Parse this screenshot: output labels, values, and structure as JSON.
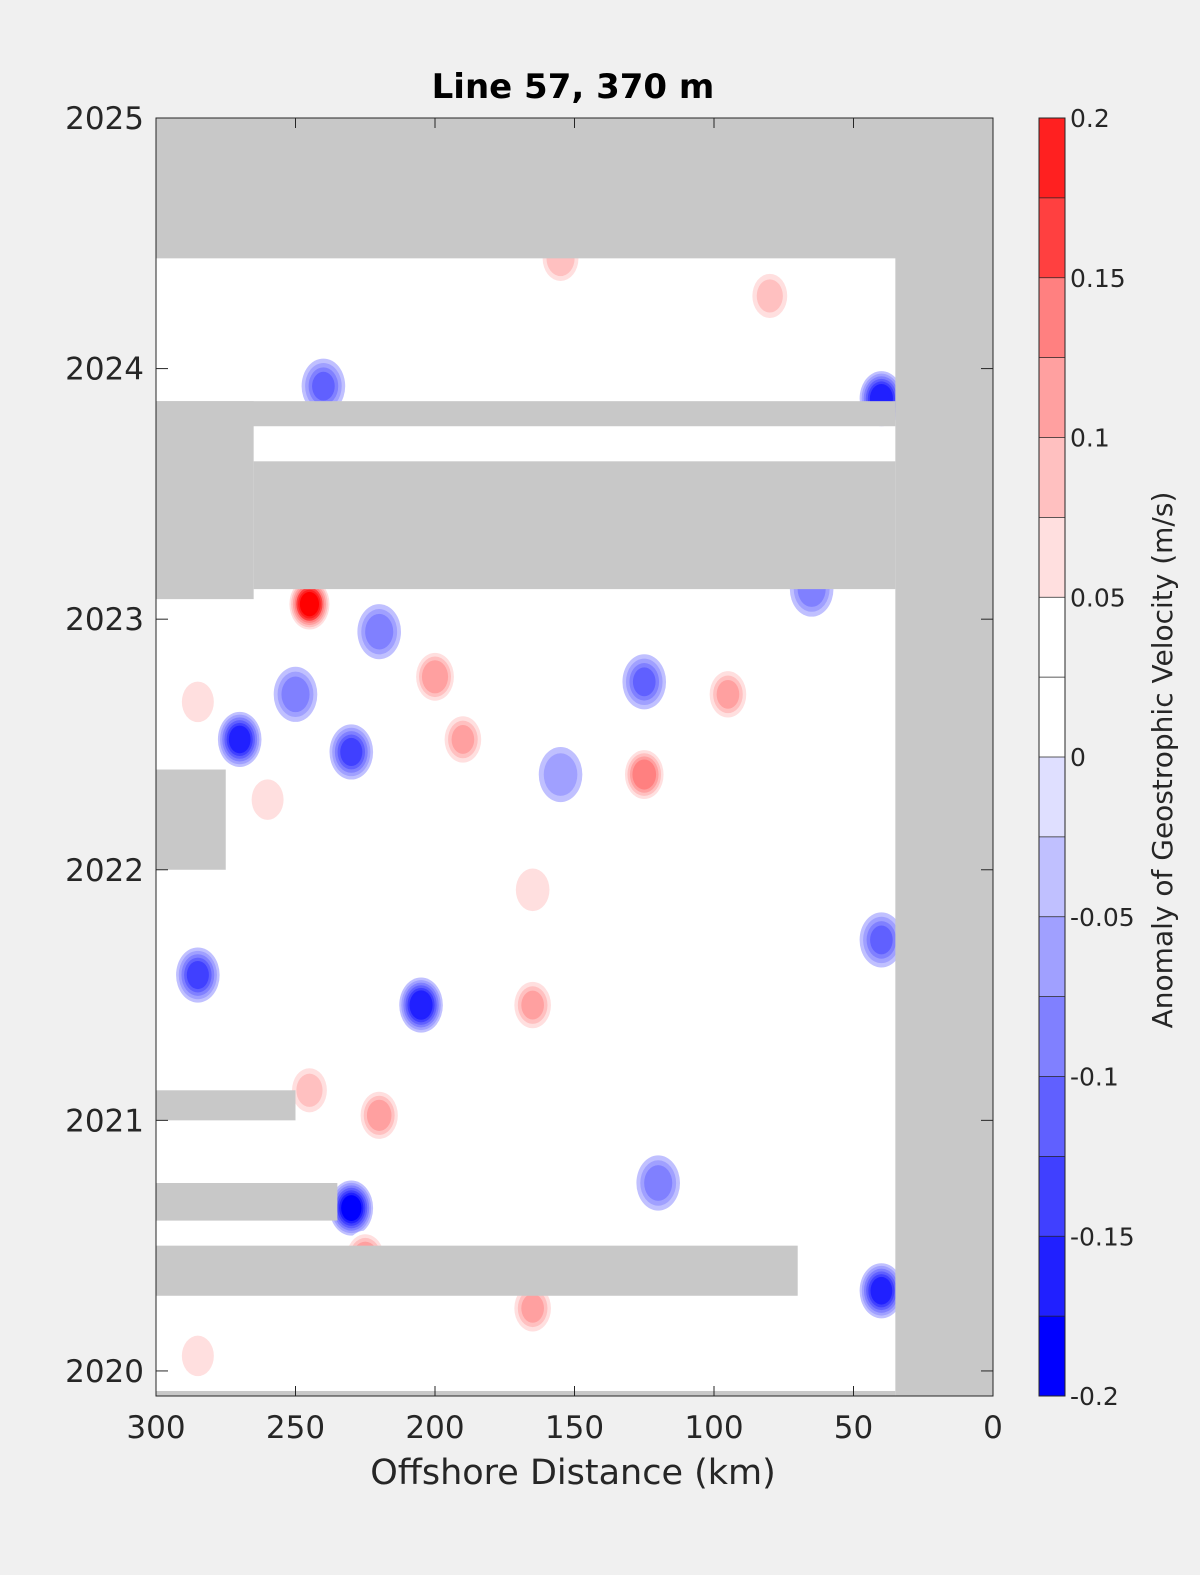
{
  "chart_data": {
    "type": "heatmap",
    "title": "Line 57, 370 m",
    "xlabel": "Offshore Distance (km)",
    "ylabel": "",
    "x_reversed": true,
    "xlim": [
      300,
      0
    ],
    "ylim": [
      2019.9,
      2025
    ],
    "xticks": [
      "300",
      "250",
      "200",
      "150",
      "100",
      "50",
      "0"
    ],
    "yticks": [
      "2020",
      "2021",
      "2022",
      "2023",
      "2024",
      "2025"
    ],
    "colorbar": {
      "label": "Anomaly of Geostrophic Velocity (m/s)",
      "ticks": [
        "0.2",
        "0.15",
        "0.1",
        "0.05",
        "0",
        "-0.05",
        "-0.1",
        "-0.15",
        "-0.2"
      ],
      "levels": [
        -0.2,
        -0.175,
        -0.15,
        -0.125,
        -0.1,
        -0.075,
        -0.05,
        -0.025,
        0,
        0.025,
        0.05,
        0.075,
        0.1,
        0.125,
        0.15,
        0.175,
        0.2
      ],
      "colors": [
        "#0000ff",
        "#2020ff",
        "#4040ff",
        "#6060ff",
        "#8080ff",
        "#a0a0ff",
        "#c0c0ff",
        "#dfdfff",
        "#ffffff",
        "#ffffff",
        "#ffdfdf",
        "#ffc0c0",
        "#ffa0a0",
        "#ff8080",
        "#ff4040",
        "#ff2020",
        "#ff0000"
      ]
    },
    "no_data_color": "#c8c8c8",
    "no_data_regions": [
      {
        "x": [
          300,
          0
        ],
        "y": [
          2024.44,
          2025
        ]
      },
      {
        "x": [
          35,
          0
        ],
        "y": [
          2019.9,
          2025
        ]
      },
      {
        "x": [
          300,
          35
        ],
        "y": [
          2023.87,
          2023.77
        ]
      },
      {
        "x": [
          265,
          35
        ],
        "y": [
          2023.63,
          2023.12
        ]
      },
      {
        "x": [
          300,
          265
        ],
        "y": [
          2023.87,
          2023.08
        ]
      },
      {
        "x": [
          300,
          275
        ],
        "y": [
          2022.4,
          2022.0
        ]
      },
      {
        "x": [
          300,
          250
        ],
        "y": [
          2021.12,
          2021.0
        ]
      },
      {
        "x": [
          300,
          235
        ],
        "y": [
          2020.75,
          2020.6
        ]
      },
      {
        "x": [
          300,
          70
        ],
        "y": [
          2020.5,
          2020.3
        ]
      },
      {
        "x": [
          300,
          35
        ],
        "y": [
          2019.92,
          2019.9
        ]
      }
    ],
    "features": [
      {
        "x": 270,
        "y": 2022.52,
        "v": -0.16
      },
      {
        "x": 230,
        "y": 2022.47,
        "v": -0.13
      },
      {
        "x": 250,
        "y": 2022.7,
        "v": -0.09
      },
      {
        "x": 190,
        "y": 2022.52,
        "v": 0.1
      },
      {
        "x": 200,
        "y": 2022.77,
        "v": 0.12
      },
      {
        "x": 125,
        "y": 2022.38,
        "v": 0.14
      },
      {
        "x": 95,
        "y": 2022.7,
        "v": 0.1
      },
      {
        "x": 125,
        "y": 2022.75,
        "v": -0.1
      },
      {
        "x": 155,
        "y": 2022.38,
        "v": -0.07
      },
      {
        "x": 245,
        "y": 2023.06,
        "v": 0.2
      },
      {
        "x": 220,
        "y": 2022.95,
        "v": -0.09
      },
      {
        "x": 65,
        "y": 2023.12,
        "v": -0.09
      },
      {
        "x": 40,
        "y": 2023.88,
        "v": -0.17
      },
      {
        "x": 240,
        "y": 2023.93,
        "v": -0.1
      },
      {
        "x": 80,
        "y": 2024.29,
        "v": 0.08
      },
      {
        "x": 155,
        "y": 2024.44,
        "v": 0.09
      },
      {
        "x": 205,
        "y": 2021.46,
        "v": -0.17
      },
      {
        "x": 285,
        "y": 2021.58,
        "v": -0.13
      },
      {
        "x": 165,
        "y": 2021.46,
        "v": 0.1
      },
      {
        "x": 245,
        "y": 2021.12,
        "v": 0.08
      },
      {
        "x": 220,
        "y": 2021.02,
        "v": 0.11
      },
      {
        "x": 230,
        "y": 2020.65,
        "v": -0.18
      },
      {
        "x": 165,
        "y": 2020.25,
        "v": 0.1
      },
      {
        "x": 225,
        "y": 2020.45,
        "v": 0.12
      },
      {
        "x": 40,
        "y": 2020.32,
        "v": -0.16
      },
      {
        "x": 40,
        "y": 2021.72,
        "v": -0.1
      },
      {
        "x": 120,
        "y": 2020.75,
        "v": -0.09
      },
      {
        "x": 165,
        "y": 2021.92,
        "v": 0.07
      },
      {
        "x": 285,
        "y": 2020.06,
        "v": 0.06
      },
      {
        "x": 260,
        "y": 2022.28,
        "v": 0.06
      },
      {
        "x": 285,
        "y": 2022.67,
        "v": 0.06
      }
    ]
  }
}
